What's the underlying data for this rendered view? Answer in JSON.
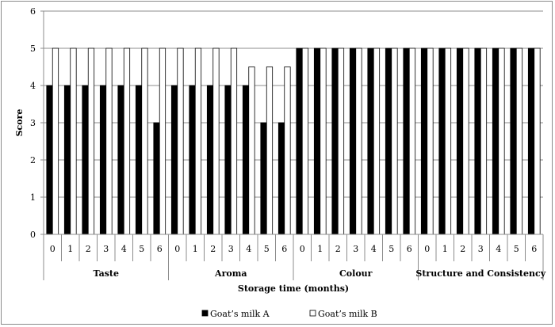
{
  "chart_data": {
    "type": "bar",
    "ylabel": "Score",
    "xlabel": "Storage time (months)",
    "ylim": [
      0,
      6
    ],
    "yticks": [
      0,
      1,
      2,
      3,
      4,
      5,
      6
    ],
    "grid": true,
    "legend_position": "bottom",
    "groups": [
      {
        "name": "Taste",
        "months": [
          "0",
          "1",
          "2",
          "3",
          "4",
          "5",
          "6"
        ]
      },
      {
        "name": "Aroma",
        "months": [
          "0",
          "1",
          "2",
          "3",
          "4",
          "5",
          "6"
        ]
      },
      {
        "name": "Colour",
        "months": [
          "0",
          "1",
          "2",
          "3",
          "4",
          "5",
          "6"
        ]
      },
      {
        "name": "Structure and Consistency",
        "months": [
          "0",
          "1",
          "2",
          "3",
          "4",
          "5",
          "6"
        ]
      }
    ],
    "series": [
      {
        "name": "Goat’s milk A",
        "color": "#000000",
        "values": [
          4,
          4,
          4,
          4,
          4,
          4,
          3,
          4,
          4,
          4,
          4,
          4,
          3,
          3,
          5,
          5,
          5,
          5,
          5,
          5,
          5,
          5,
          5,
          5,
          5,
          5,
          5,
          5
        ]
      },
      {
        "name": "Goat’s milk B",
        "color": "#ffffff",
        "values": [
          5,
          5,
          5,
          5,
          5,
          5,
          5,
          5,
          5,
          5,
          5,
          4.5,
          4.5,
          4.5,
          5,
          5,
          5,
          5,
          5,
          5,
          5,
          5,
          5,
          5,
          5,
          5,
          5,
          5
        ]
      }
    ]
  }
}
